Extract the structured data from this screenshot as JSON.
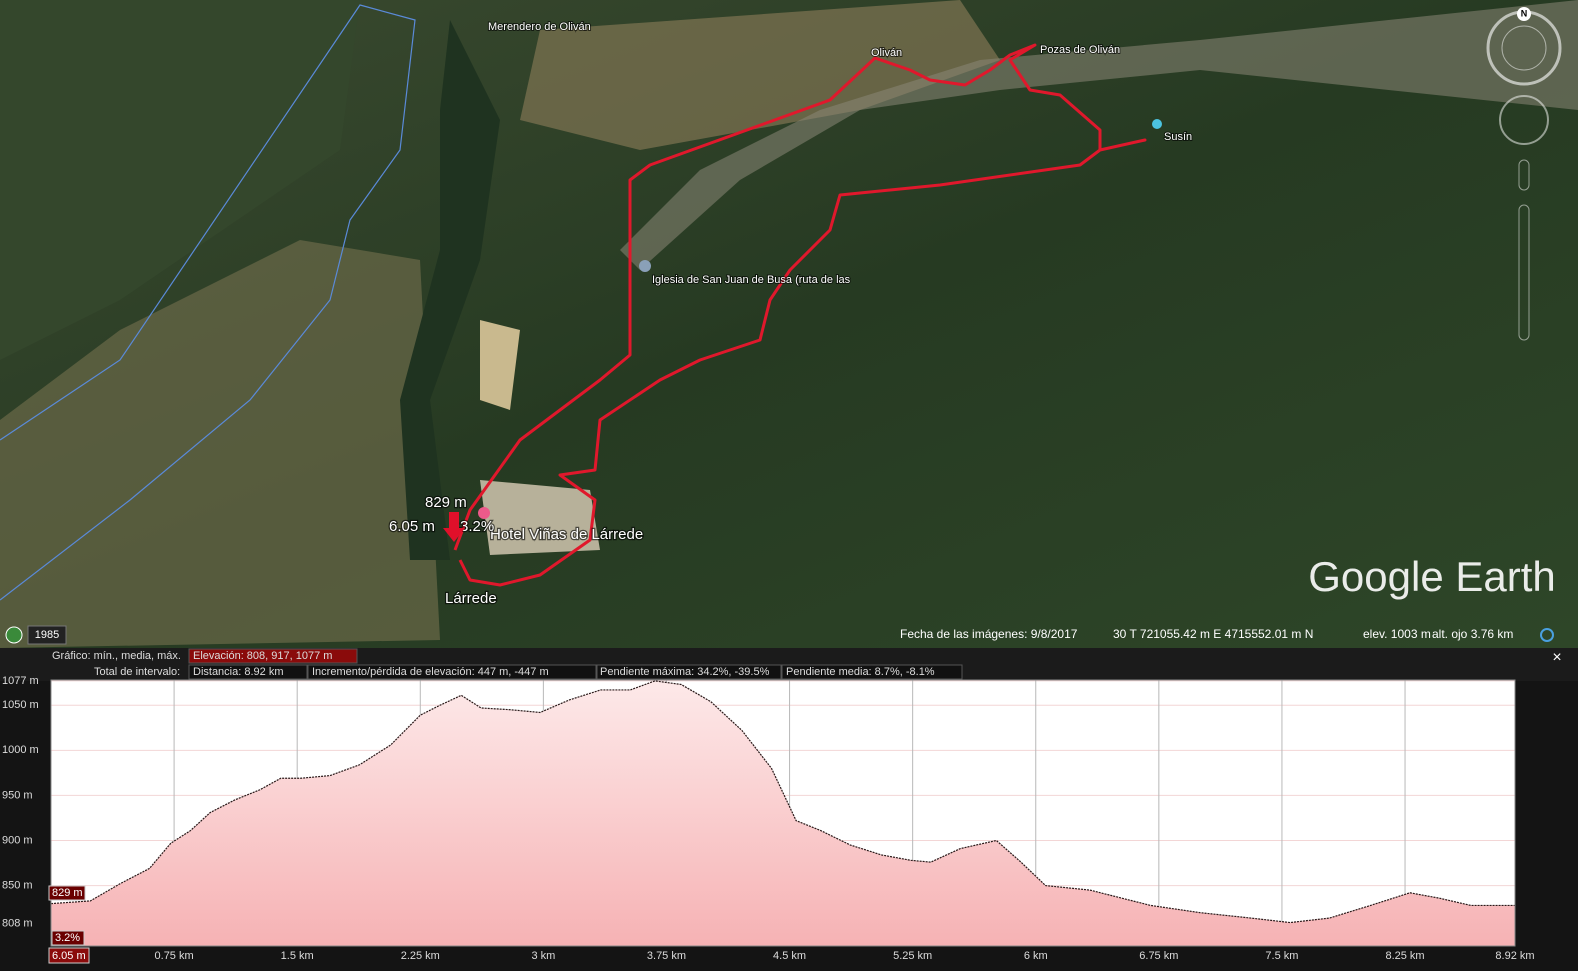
{
  "map": {
    "places": {
      "merendero": "Merendero de Oliván",
      "olivan": "Oliván",
      "pozas": "Pozas de Oliván",
      "susin": "Susín",
      "iglesia": "Iglesia de San Juan de Busa (ruta de las",
      "hotel": "Hotel Viñas de Lárrede",
      "larrede": "Lárrede"
    },
    "cursor": {
      "elevation": "829 m",
      "distance": "6.05 m",
      "slope": "3.2%"
    },
    "logo": "Google Earth",
    "compass": "N",
    "year": "1985"
  },
  "status": {
    "date": "Fecha de las imágenes: 9/8/2017",
    "coords": "30 T 721055.42 m E 4715552.01 m N",
    "elev": "elev.  1003 m",
    "eye": "alt. ojo   3.76 km"
  },
  "info": {
    "graph_label": "Gráfico: mín., media, máx.",
    "elevation": "Elevación: 808, 917, 1077 m",
    "range_label": "Total de intervalo:",
    "distance": "Distancia: 8.92 km",
    "gain": "Incremento/pérdida de elevación: 447 m, -447 m",
    "max_slope": "Pendiente máxima: 34.2%, -39.5%",
    "avg_slope": "Pendiente media: 8.7%, -8.1%",
    "close": "×"
  },
  "chart_data": {
    "type": "area",
    "x": [
      0,
      0.24,
      0.42,
      0.6,
      0.73,
      0.85,
      0.97,
      1.12,
      1.27,
      1.4,
      1.52,
      1.7,
      1.88,
      2.07,
      2.25,
      2.37,
      2.5,
      2.62,
      2.8,
      2.98,
      3.16,
      3.35,
      3.53,
      3.68,
      3.84,
      4.02,
      4.21,
      4.39,
      4.54,
      4.69,
      4.87,
      5.06,
      5.24,
      5.36,
      5.54,
      5.76,
      5.91,
      6.06,
      6.33,
      6.7,
      7.0,
      7.31,
      7.55,
      7.79,
      8.04,
      8.28,
      8.46,
      8.65,
      8.92
    ],
    "values": [
      830,
      833,
      852,
      869,
      897,
      911,
      931,
      945,
      956,
      969,
      969,
      972,
      984,
      1006,
      1039,
      1050,
      1061,
      1047,
      1045,
      1042,
      1056,
      1067,
      1067,
      1077,
      1073,
      1054,
      1022,
      980,
      922,
      911,
      895,
      884,
      878,
      876,
      891,
      900,
      876,
      850,
      845,
      828,
      820,
      814,
      809,
      814,
      828,
      842,
      836,
      828,
      828
    ],
    "color": "#2a1a1a",
    "xlim": [
      0,
      8.92
    ],
    "ylim": [
      783,
      1078
    ],
    "xticks": [
      {
        "value": 0.75,
        "label": "0.75 km"
      },
      {
        "value": 1.5,
        "label": "1.5 km"
      },
      {
        "value": 2.25,
        "label": "2.25 km"
      },
      {
        "value": 3,
        "label": "3 km"
      },
      {
        "value": 3.75,
        "label": "3.75 km"
      },
      {
        "value": 4.5,
        "label": "4.5 km"
      },
      {
        "value": 5.25,
        "label": "5.25 km"
      },
      {
        "value": 6,
        "label": "6 km"
      },
      {
        "value": 6.75,
        "label": "6.75 km"
      },
      {
        "value": 7.5,
        "label": "7.5 km"
      },
      {
        "value": 8.25,
        "label": "8.25 km"
      },
      {
        "value": 8.92,
        "label": "8.92 km"
      }
    ],
    "yticks": [
      {
        "value": 808,
        "label": "808 m"
      },
      {
        "value": 850,
        "label": "850 m"
      },
      {
        "value": 900,
        "label": "900 m"
      },
      {
        "value": 950,
        "label": "950 m"
      },
      {
        "value": 1000,
        "label": "1000 m"
      },
      {
        "value": 1050,
        "label": "1050 m"
      },
      {
        "value": 1077,
        "label": "1077 m"
      }
    ],
    "grid": true
  }
}
